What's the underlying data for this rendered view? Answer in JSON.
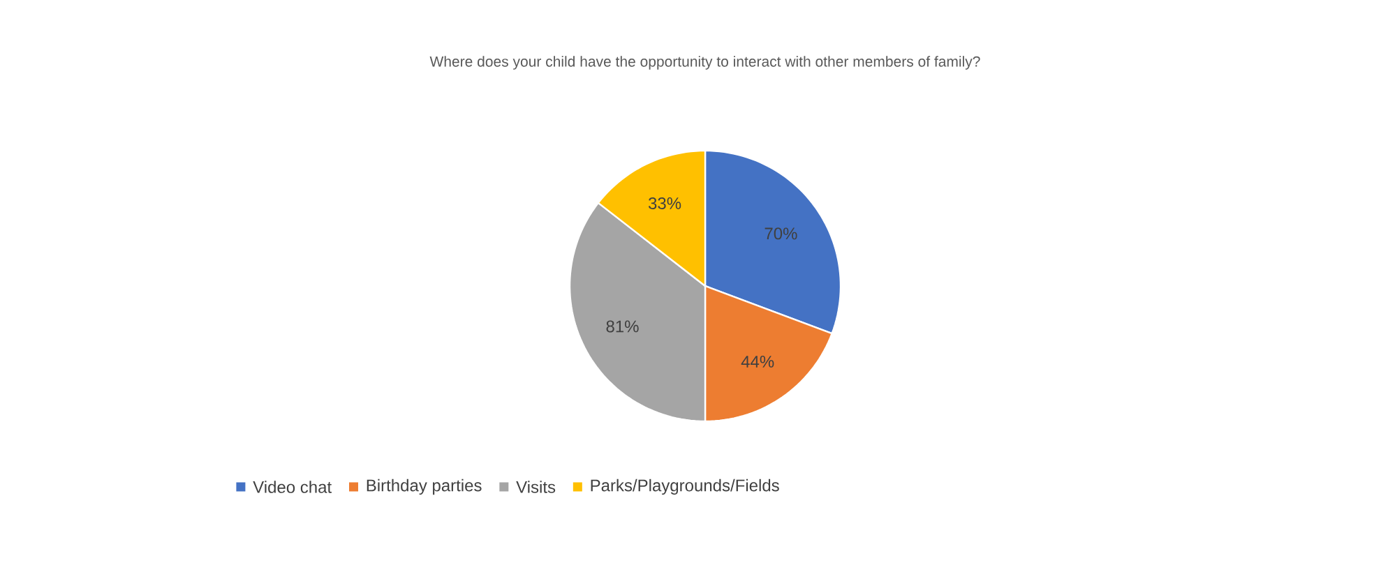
{
  "chart_data": {
    "type": "pie",
    "title": "Where does your child have the opportunity to interact with other members of family?",
    "categories": [
      "Video chat",
      "Birthday parties",
      "Visits",
      "Parks/Playgrounds/Fields"
    ],
    "values": [
      70,
      44,
      81,
      33
    ],
    "value_labels": [
      "70%",
      "44%",
      "81%",
      "33%"
    ],
    "colors": [
      "#4472c4",
      "#ed7d31",
      "#a5a5a5",
      "#ffc000"
    ],
    "legend": "bottom"
  }
}
